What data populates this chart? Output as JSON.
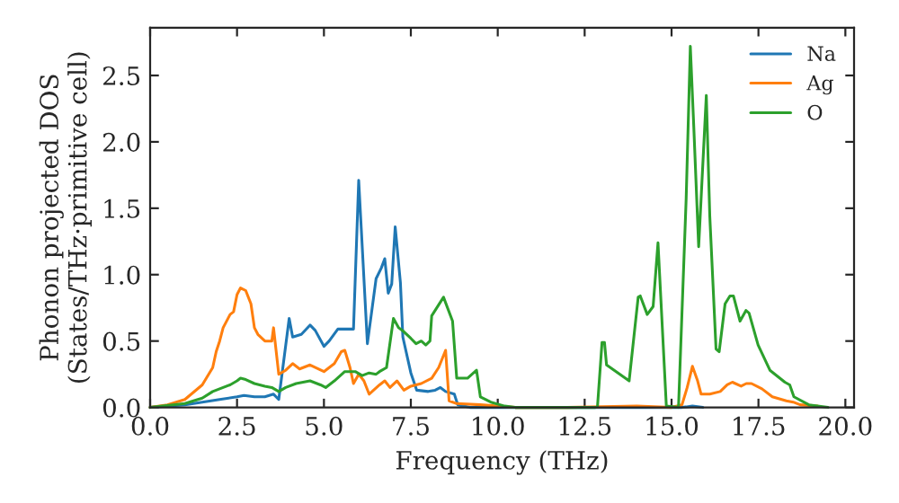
{
  "chart_data": {
    "type": "line",
    "xlabel": "Frequency (THz)",
    "ylabel": "Phonon projected DOS\n(States/THz·primitive cell)",
    "xlim": [
      0,
      20.25
    ],
    "ylim": [
      0,
      2.86
    ],
    "xticks": [
      {
        "value": 0,
        "label": "0.0"
      },
      {
        "value": 2.5,
        "label": "2.5"
      },
      {
        "value": 5,
        "label": "5.0"
      },
      {
        "value": 7.5,
        "label": "7.5"
      },
      {
        "value": 10,
        "label": "10.0"
      },
      {
        "value": 12.5,
        "label": "12.5"
      },
      {
        "value": 15,
        "label": "15.0"
      },
      {
        "value": 17.5,
        "label": "17.5"
      },
      {
        "value": 20,
        "label": "20.0"
      }
    ],
    "yticks": [
      {
        "value": 0,
        "label": "0.0"
      },
      {
        "value": 0.5,
        "label": "0.5"
      },
      {
        "value": 1,
        "label": "1.0"
      },
      {
        "value": 1.5,
        "label": "1.5"
      },
      {
        "value": 2,
        "label": "2.0"
      },
      {
        "value": 2.5,
        "label": "2.5"
      }
    ],
    "grid": false,
    "legend": "top right",
    "series": [
      {
        "name": "Na",
        "color": "#1f77b4",
        "x": [
          0,
          1.0,
          2.0,
          2.5,
          2.7,
          3.0,
          3.3,
          3.55,
          3.7,
          4.0,
          4.1,
          4.35,
          4.6,
          4.75,
          5.0,
          5.15,
          5.4,
          5.85,
          6.0,
          6.25,
          6.5,
          6.65,
          6.75,
          6.85,
          6.95,
          7.05,
          7.2,
          7.27,
          7.5,
          7.67,
          8.0,
          8.2,
          8.35,
          8.5,
          8.75,
          8.85,
          9.2,
          15.3,
          15.6,
          15.9
        ],
        "values": [
          0,
          0.02,
          0.06,
          0.08,
          0.09,
          0.08,
          0.08,
          0.1,
          0.06,
          0.67,
          0.53,
          0.55,
          0.62,
          0.58,
          0.46,
          0.5,
          0.59,
          0.59,
          1.71,
          0.48,
          0.97,
          1.05,
          1.12,
          0.86,
          0.93,
          1.36,
          0.94,
          0.53,
          0.26,
          0.13,
          0.12,
          0.13,
          0.15,
          0.12,
          0.1,
          0.02,
          0,
          0,
          0.01,
          0
        ]
      },
      {
        "name": "Ag",
        "color": "#ff7f0e",
        "x": [
          0,
          0.5,
          1.0,
          1.5,
          1.8,
          1.9,
          2.0,
          2.1,
          2.3,
          2.4,
          2.5,
          2.6,
          2.75,
          2.9,
          3.0,
          3.1,
          3.3,
          3.5,
          3.55,
          3.7,
          3.9,
          4.1,
          4.3,
          4.6,
          5.0,
          5.3,
          5.5,
          5.6,
          5.75,
          5.85,
          6.0,
          6.15,
          6.3,
          6.6,
          6.75,
          6.9,
          7.1,
          7.3,
          7.5,
          7.8,
          8.1,
          8.3,
          8.5,
          8.6,
          8.8,
          9.5,
          10.0,
          10.5,
          12.0,
          14.0,
          15.0,
          15.3,
          15.45,
          15.6,
          15.75,
          15.85,
          16.1,
          16.4,
          16.6,
          16.75,
          17.0,
          17.15,
          17.3,
          17.6,
          17.9,
          18.3,
          18.5,
          18.7,
          19.2
        ],
        "values": [
          0,
          0.02,
          0.06,
          0.17,
          0.3,
          0.42,
          0.5,
          0.6,
          0.7,
          0.72,
          0.85,
          0.9,
          0.88,
          0.78,
          0.6,
          0.55,
          0.5,
          0.5,
          0.6,
          0.25,
          0.28,
          0.33,
          0.29,
          0.32,
          0.27,
          0.33,
          0.42,
          0.43,
          0.3,
          0.18,
          0.25,
          0.2,
          0.1,
          0.17,
          0.2,
          0.15,
          0.2,
          0.13,
          0.16,
          0.18,
          0.22,
          0.3,
          0.43,
          0.05,
          0.03,
          0.02,
          0.01,
          0,
          0,
          0.01,
          0,
          0.02,
          0.15,
          0.31,
          0.2,
          0.1,
          0.1,
          0.12,
          0.17,
          0.19,
          0.16,
          0.18,
          0.18,
          0.14,
          0.08,
          0.05,
          0.04,
          0.02,
          0.01
        ]
      },
      {
        "name": "O",
        "color": "#2ca02c",
        "x": [
          0,
          1.0,
          1.5,
          1.8,
          2.0,
          2.3,
          2.5,
          2.6,
          2.75,
          3.0,
          3.3,
          3.5,
          3.7,
          3.9,
          4.2,
          4.6,
          4.9,
          5.05,
          5.3,
          5.6,
          5.9,
          6.1,
          6.3,
          6.5,
          6.6,
          6.8,
          7.0,
          7.15,
          7.3,
          7.5,
          7.65,
          7.8,
          7.93,
          8.05,
          8.1,
          8.44,
          8.7,
          8.82,
          9.13,
          9.39,
          9.5,
          9.8,
          10.2,
          10.5,
          12.8,
          12.87,
          13.0,
          13.07,
          13.13,
          13.78,
          14.04,
          14.1,
          14.3,
          14.47,
          14.61,
          14.85,
          15.2,
          15.42,
          15.54,
          15.64,
          15.78,
          16.0,
          16.1,
          16.28,
          16.37,
          16.54,
          16.68,
          16.78,
          16.97,
          17.14,
          17.23,
          17.49,
          17.83,
          18.26,
          18.4,
          18.52,
          18.95,
          19.5
        ],
        "values": [
          0,
          0.03,
          0.07,
          0.12,
          0.14,
          0.17,
          0.2,
          0.22,
          0.21,
          0.18,
          0.16,
          0.15,
          0.12,
          0.15,
          0.18,
          0.2,
          0.17,
          0.15,
          0.2,
          0.27,
          0.27,
          0.24,
          0.26,
          0.25,
          0.27,
          0.3,
          0.67,
          0.6,
          0.57,
          0.52,
          0.48,
          0.5,
          0.47,
          0.5,
          0.69,
          0.83,
          0.65,
          0.22,
          0.22,
          0.28,
          0.08,
          0.04,
          0.01,
          0,
          0,
          0.01,
          0.49,
          0.49,
          0.32,
          0.2,
          0.83,
          0.84,
          0.7,
          0.76,
          1.24,
          0.01,
          0,
          1.57,
          2.72,
          2.11,
          1.21,
          2.35,
          1.44,
          0.44,
          0.42,
          0.78,
          0.84,
          0.84,
          0.65,
          0.73,
          0.71,
          0.47,
          0.28,
          0.19,
          0.17,
          0.08,
          0.02,
          0
        ]
      }
    ]
  }
}
